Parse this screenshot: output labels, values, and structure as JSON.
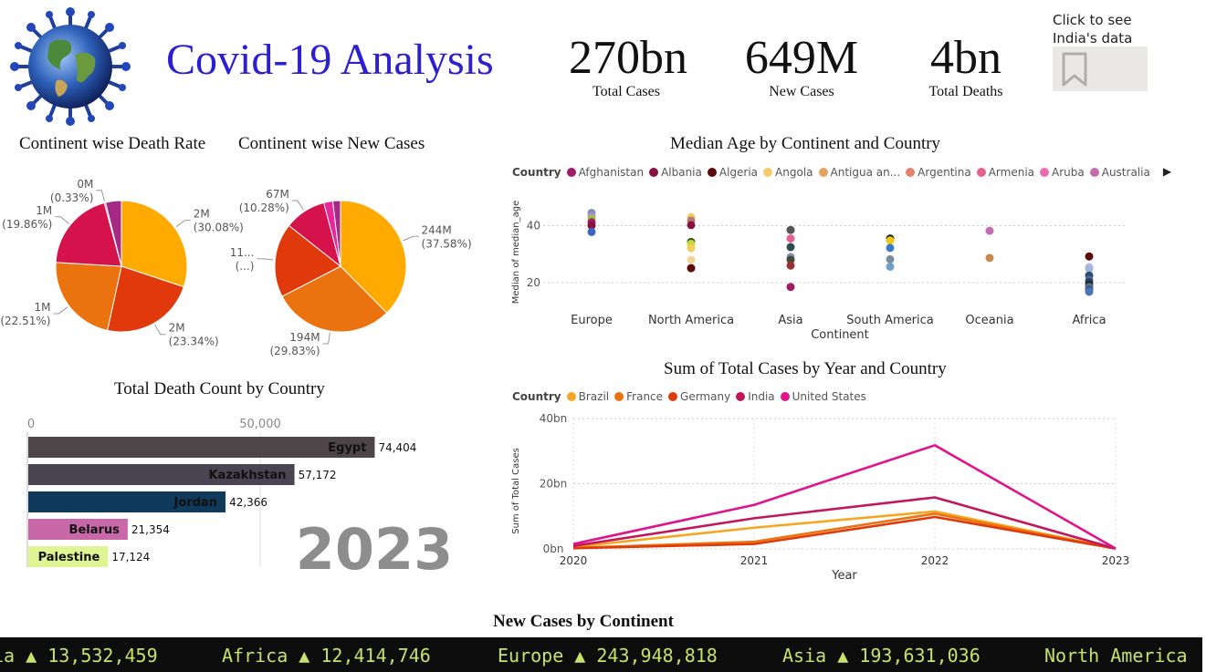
{
  "header": {
    "title": "Covid-19 Analysis",
    "kpis": [
      {
        "value": "270bn",
        "label": "Total Cases"
      },
      {
        "value": "649M",
        "label": "New Cases"
      },
      {
        "value": "4bn",
        "label": "Total Deaths"
      }
    ],
    "india_hint": [
      "Click to see",
      "India's data"
    ]
  },
  "colors": {
    "title_blue": "#2b1fd1",
    "ticker_bg": "#0d0d0d",
    "ticker_text": "#c5e26b"
  },
  "chart_data": [
    {
      "id": "death-rate-pie",
      "type": "pie",
      "title": "Continent wise Death Rate",
      "slices": [
        {
          "label": "2M",
          "pct": "(30.08%)",
          "value": 30.08,
          "color": "#ffaa00"
        },
        {
          "label": "2M",
          "pct": "(23.34%)",
          "value": 23.34,
          "color": "#e03a0c"
        },
        {
          "label": "1M",
          "pct": "(22.51%)",
          "value": 22.51,
          "color": "#ea730f"
        },
        {
          "label": "1M",
          "pct": "(19.86%)",
          "value": 19.86,
          "color": "#d5124c"
        },
        {
          "label": "0M",
          "pct": "(0.33%)",
          "value": 0.33,
          "color": "#e8289a"
        },
        {
          "label": "",
          "pct": "",
          "value": 3.88,
          "color": "#a42a84"
        }
      ]
    },
    {
      "id": "new-cases-pie",
      "type": "pie",
      "title": "Continent wise New Cases",
      "slices": [
        {
          "label": "244M",
          "pct": "(37.58%)",
          "value": 37.58,
          "color": "#ffaa00"
        },
        {
          "label": "194M",
          "pct": "(29.83%)",
          "value": 29.83,
          "color": "#ea730f"
        },
        {
          "label": "11...",
          "pct": "(...)",
          "value": 18.22,
          "color": "#e03a0c"
        },
        {
          "label": "67M",
          "pct": "(10.28%)",
          "value": 10.28,
          "color": "#d5124c"
        },
        {
          "label": "",
          "pct": "",
          "value": 2.2,
          "color": "#e8289a"
        },
        {
          "label": "",
          "pct": "",
          "value": 1.89,
          "color": "#a42a84"
        }
      ]
    },
    {
      "id": "median-age-scatter",
      "type": "scatter",
      "title": "Median Age by Continent and Country",
      "legend_title": "Country",
      "legend": [
        {
          "name": "Afghanistan",
          "color": "#a01a68"
        },
        {
          "name": "Albania",
          "color": "#8a1240"
        },
        {
          "name": "Algeria",
          "color": "#5c0a0a"
        },
        {
          "name": "Angola",
          "color": "#f7c96a"
        },
        {
          "name": "Antigua an...",
          "color": "#e8a25a"
        },
        {
          "name": "Argentina",
          "color": "#e3826a"
        },
        {
          "name": "Armenia",
          "color": "#e3618e"
        },
        {
          "name": "Aruba",
          "color": "#ef6bb3"
        },
        {
          "name": "Australia",
          "color": "#c56bb0"
        }
      ],
      "xlabel": "Continent",
      "ylabel": "Median of median_age",
      "categories": [
        "Europe",
        "North America",
        "Asia",
        "South America",
        "Oceania",
        "Africa"
      ],
      "yticks": [
        20,
        40
      ],
      "ylim": [
        12,
        52
      ],
      "points": [
        {
          "cat": 0,
          "y": 44.5,
          "color": "#7b8fb8"
        },
        {
          "cat": 0,
          "y": 43.3,
          "color": "#b48ad4"
        },
        {
          "cat": 0,
          "y": 42.5,
          "color": "#9ac23d"
        },
        {
          "cat": 0,
          "y": 41.2,
          "color": "#a01a68"
        },
        {
          "cat": 0,
          "y": 40.0,
          "color": "#8a1240"
        },
        {
          "cat": 0,
          "y": 37.8,
          "color": "#3b63c4"
        },
        {
          "cat": 1,
          "y": 43.0,
          "color": "#f7c96a"
        },
        {
          "cat": 1,
          "y": 41.8,
          "color": "#b27b6f"
        },
        {
          "cat": 1,
          "y": 40.2,
          "color": "#8a1240"
        },
        {
          "cat": 1,
          "y": 34.3,
          "color": "#2e5d1e"
        },
        {
          "cat": 1,
          "y": 33.6,
          "color": "#c9d93d"
        },
        {
          "cat": 1,
          "y": 32.1,
          "color": "#f0d05a"
        },
        {
          "cat": 1,
          "y": 28.0,
          "color": "#f2d39a"
        },
        {
          "cat": 1,
          "y": 25.1,
          "color": "#5c0a0a"
        },
        {
          "cat": 2,
          "y": 38.5,
          "color": "#555555"
        },
        {
          "cat": 2,
          "y": 35.5,
          "color": "#e3618e"
        },
        {
          "cat": 2,
          "y": 32.5,
          "color": "#2f4a52"
        },
        {
          "cat": 2,
          "y": 29.0,
          "color": "#7b8fb8"
        },
        {
          "cat": 2,
          "y": 28.0,
          "color": "#444a3a"
        },
        {
          "cat": 2,
          "y": 26.0,
          "color": "#9b3030"
        },
        {
          "cat": 2,
          "y": 18.5,
          "color": "#a01a68"
        },
        {
          "cat": 3,
          "y": 35.5,
          "color": "#1a2a30"
        },
        {
          "cat": 3,
          "y": 34.8,
          "color": "#f0c814"
        },
        {
          "cat": 3,
          "y": 32.2,
          "color": "#3b7ac4"
        },
        {
          "cat": 3,
          "y": 28.2,
          "color": "#7a8e9a"
        },
        {
          "cat": 3,
          "y": 25.6,
          "color": "#6ea0c6"
        },
        {
          "cat": 4,
          "y": 38.2,
          "color": "#c56bb0"
        },
        {
          "cat": 4,
          "y": 28.7,
          "color": "#c88a50"
        },
        {
          "cat": 5,
          "y": 29.2,
          "color": "#5c0a0a"
        },
        {
          "cat": 5,
          "y": 25.5,
          "color": "#b8bde8"
        },
        {
          "cat": 5,
          "y": 24.8,
          "color": "#a5b4d8"
        },
        {
          "cat": 5,
          "y": 22.5,
          "color": "#2e4a6e"
        },
        {
          "cat": 5,
          "y": 21.0,
          "color": "#4a6fa5"
        },
        {
          "cat": 5,
          "y": 20.2,
          "color": "#333f52"
        },
        {
          "cat": 5,
          "y": 19.3,
          "color": "#202830"
        },
        {
          "cat": 5,
          "y": 18.5,
          "color": "#5a7090"
        },
        {
          "cat": 5,
          "y": 17.6,
          "color": "#3c5890"
        },
        {
          "cat": 5,
          "y": 16.8,
          "color": "#4d73b5"
        }
      ]
    },
    {
      "id": "death-count-bar",
      "type": "bar",
      "orientation": "horizontal",
      "title": "Total Death Count by Country",
      "xticks": [
        0,
        50000
      ],
      "xtick_labels": [
        "0",
        "50,000"
      ],
      "xlim": [
        0,
        100000
      ],
      "watermark": "2023",
      "bars": [
        {
          "name": "Egypt",
          "value": 74404,
          "value_label": "74,404",
          "color": "#4d4547"
        },
        {
          "name": "Kazakhstan",
          "value": 57172,
          "value_label": "57,172",
          "color": "#4a4452"
        },
        {
          "name": "Jordan",
          "value": 42366,
          "value_label": "42,366",
          "color": "#0f3a5c"
        },
        {
          "name": "Belarus",
          "value": 21354,
          "value_label": "21,354",
          "color": "#c868a8"
        },
        {
          "name": "Palestine",
          "value": 17124,
          "value_label": "17,124",
          "color": "#dff594"
        }
      ]
    },
    {
      "id": "total-cases-line",
      "type": "line",
      "title": "Sum of Total Cases by Year and Country",
      "legend_title": "Country",
      "xlabel": "Year",
      "ylabel": "Sum of Total Cases",
      "x": [
        "2020",
        "2021",
        "2022",
        "2023"
      ],
      "yticks": [
        0,
        20,
        40
      ],
      "ytick_labels": [
        "0bn",
        "20bn",
        "40bn"
      ],
      "ylim": [
        0,
        40
      ],
      "series": [
        {
          "name": "Brazil",
          "color": "#f5a623",
          "values": [
            0.6,
            6.5,
            11.5,
            0.1
          ]
        },
        {
          "name": "France",
          "color": "#ea730f",
          "values": [
            0.3,
            2.2,
            10.8,
            0.1
          ]
        },
        {
          "name": "Germany",
          "color": "#e03a0c",
          "values": [
            0.2,
            1.5,
            9.8,
            0.1
          ]
        },
        {
          "name": "India",
          "color": "#c2185b",
          "values": [
            0.9,
            9.4,
            15.8,
            0.1
          ]
        },
        {
          "name": "United States",
          "color": "#e0148c",
          "values": [
            1.5,
            13.5,
            31.8,
            0.1
          ]
        }
      ]
    }
  ],
  "ticker": {
    "title": "New Cases by Continent",
    "items": [
      "ia ▲ 13,532,459",
      "Africa ▲ 12,414,746",
      "Europe ▲ 243,948,818",
      "Asia ▲ 193,631,036",
      "North America"
    ]
  }
}
